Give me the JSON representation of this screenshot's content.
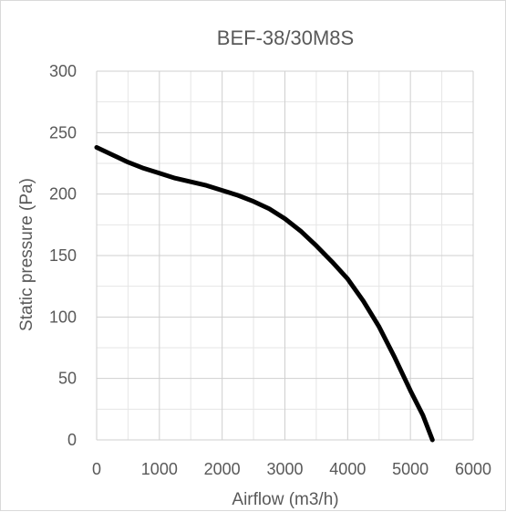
{
  "chart_data": {
    "type": "line",
    "title": "BEF-38/30M8S",
    "xlabel": "Airflow (m3/h)",
    "ylabel": "Static pressure (Pa)",
    "xlim": [
      0,
      6000
    ],
    "ylim": [
      0,
      300
    ],
    "x_ticks": [
      "0",
      "1000",
      "2000",
      "3000",
      "4000",
      "5000",
      "6000"
    ],
    "y_ticks": [
      "0",
      "50",
      "100",
      "150",
      "200",
      "250",
      "300"
    ],
    "grid": true,
    "minor_grid": true,
    "legend": "none",
    "series": [
      {
        "color": "#000000",
        "x": [
          0,
          250,
          500,
          750,
          1000,
          1250,
          1500,
          1750,
          2000,
          2250,
          2500,
          2750,
          3000,
          3250,
          3500,
          3750,
          4000,
          4250,
          4500,
          4750,
          5000,
          5200,
          5350
        ],
        "y": [
          238,
          232,
          226,
          221,
          217,
          213,
          210,
          207,
          203,
          199,
          194,
          188,
          180,
          170,
          158,
          145,
          131,
          113,
          92,
          67,
          40,
          20,
          0
        ]
      }
    ]
  }
}
